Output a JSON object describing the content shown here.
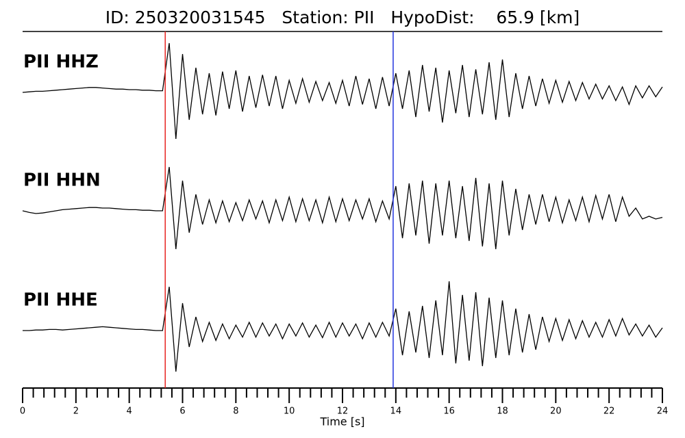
{
  "chart_data": {
    "type": "line",
    "title": "ID: 250320031545   Station: PII   HypoDist:    65.9 [km]",
    "xlabel": "Time [s]",
    "xlim": [
      0,
      24
    ],
    "xticks": [
      0,
      2,
      4,
      6,
      8,
      10,
      12,
      14,
      16,
      18,
      20,
      22,
      24
    ],
    "xminorticks": [
      0.4,
      0.8,
      1.2,
      1.6,
      2.4,
      2.8,
      3.2,
      3.6,
      4.4,
      4.8,
      5.2,
      5.6,
      6.4,
      6.8,
      7.2,
      7.6,
      8.4,
      8.8,
      9.2,
      9.6,
      10.4,
      10.8,
      11.2,
      11.6,
      12.4,
      12.8,
      13.2,
      13.6,
      14.4,
      14.8,
      15.2,
      15.6,
      16.4,
      16.8,
      17.2,
      17.6,
      18.4,
      18.8,
      19.2,
      19.6,
      20.4,
      20.8,
      21.2,
      21.6,
      22.4,
      22.8,
      23.2,
      23.6
    ],
    "ylim": [
      -1,
      1
    ],
    "label_color": "#4e9a06",
    "markers": [
      {
        "x": 5.35,
        "color": "#e8231f"
      },
      {
        "x": 13.9,
        "color": "#2233dd"
      }
    ],
    "x": [
      0,
      0.25,
      0.5,
      0.75,
      1,
      1.25,
      1.5,
      1.75,
      2,
      2.25,
      2.5,
      2.75,
      3,
      3.25,
      3.5,
      3.75,
      4,
      4.25,
      4.5,
      4.75,
      5,
      5.25,
      5.5,
      5.75,
      6,
      6.25,
      6.5,
      6.75,
      7,
      7.25,
      7.5,
      7.75,
      8,
      8.25,
      8.5,
      8.75,
      9,
      9.25,
      9.5,
      9.75,
      10,
      10.25,
      10.5,
      10.75,
      11,
      11.25,
      11.5,
      11.75,
      12,
      12.25,
      12.5,
      12.75,
      13,
      13.25,
      13.5,
      13.75,
      14,
      14.25,
      14.5,
      14.75,
      15,
      15.25,
      15.5,
      15.75,
      16,
      16.25,
      16.5,
      16.75,
      17,
      17.25,
      17.5,
      17.75,
      18,
      18.25,
      18.5,
      18.75,
      19,
      19.25,
      19.5,
      19.75,
      20,
      20.25,
      20.5,
      20.75,
      21,
      21.25,
      21.5,
      21.75,
      22,
      22.25,
      22.5,
      22.75,
      23,
      23.25,
      23.5,
      23.75,
      24
    ],
    "series": [
      {
        "name": "PII HHZ",
        "color": "#000000",
        "values": [
          0,
          0.01,
          0.02,
          0.02,
          0.03,
          0.04,
          0.05,
          0.06,
          0.07,
          0.08,
          0.09,
          0.09,
          0.08,
          0.07,
          0.06,
          0.06,
          0.05,
          0.05,
          0.04,
          0.04,
          0.03,
          0.03,
          0.9,
          -0.85,
          0.7,
          -0.5,
          0.45,
          -0.4,
          0.35,
          -0.42,
          0.38,
          -0.3,
          0.4,
          -0.35,
          0.3,
          -0.28,
          0.32,
          -0.25,
          0.3,
          -0.3,
          0.22,
          -0.2,
          0.25,
          -0.18,
          0.2,
          -0.15,
          0.18,
          -0.2,
          0.22,
          -0.25,
          0.3,
          -0.22,
          0.25,
          -0.3,
          0.28,
          -0.25,
          0.35,
          -0.3,
          0.4,
          -0.45,
          0.5,
          -0.35,
          0.45,
          -0.55,
          0.4,
          -0.38,
          0.5,
          -0.45,
          0.42,
          -0.4,
          0.55,
          -0.5,
          0.6,
          -0.45,
          0.35,
          -0.3,
          0.3,
          -0.25,
          0.25,
          -0.2,
          0.22,
          -0.18,
          0.2,
          -0.15,
          0.18,
          -0.12,
          0.15,
          -0.12,
          0.12,
          -0.15,
          0.1,
          -0.22,
          0.12,
          -0.1,
          0.12,
          -0.08,
          0.1
        ]
      },
      {
        "name": "PII HHN",
        "color": "#000000",
        "values": [
          0,
          -0.03,
          -0.05,
          -0.04,
          -0.02,
          0,
          0.02,
          0.03,
          0.04,
          0.05,
          0.06,
          0.06,
          0.05,
          0.05,
          0.04,
          0.03,
          0.02,
          0.02,
          0.01,
          0.01,
          0,
          0,
          0.8,
          -0.7,
          0.55,
          -0.4,
          0.3,
          -0.25,
          0.2,
          -0.22,
          0.18,
          -0.2,
          0.15,
          -0.18,
          0.2,
          -0.15,
          0.18,
          -0.22,
          0.2,
          -0.18,
          0.25,
          -0.2,
          0.22,
          -0.18,
          0.2,
          -0.22,
          0.25,
          -0.2,
          0.22,
          -0.18,
          0.2,
          -0.15,
          0.22,
          -0.2,
          0.18,
          -0.15,
          0.45,
          -0.5,
          0.5,
          -0.45,
          0.55,
          -0.6,
          0.5,
          -0.45,
          0.55,
          -0.5,
          0.45,
          -0.55,
          0.6,
          -0.65,
          0.5,
          -0.7,
          0.55,
          -0.45,
          0.4,
          -0.35,
          0.3,
          -0.25,
          0.3,
          -0.2,
          0.25,
          -0.22,
          0.2,
          -0.18,
          0.25,
          -0.2,
          0.28,
          -0.15,
          0.3,
          -0.2,
          0.25,
          -0.1,
          0.05,
          -0.15,
          -0.1,
          -0.15,
          -0.12
        ]
      },
      {
        "name": "PII HHE",
        "color": "#000000",
        "values": [
          0,
          0,
          0.01,
          0.01,
          0.02,
          0.02,
          0.01,
          0.02,
          0.03,
          0.04,
          0.05,
          0.06,
          0.07,
          0.06,
          0.05,
          0.04,
          0.03,
          0.02,
          0.02,
          0.01,
          0,
          0,
          0.8,
          -0.75,
          0.5,
          -0.3,
          0.25,
          -0.2,
          0.15,
          -0.18,
          0.12,
          -0.15,
          0.1,
          -0.12,
          0.15,
          -0.12,
          0.14,
          -0.1,
          0.12,
          -0.15,
          0.12,
          -0.1,
          0.14,
          -0.12,
          0.1,
          -0.13,
          0.15,
          -0.12,
          0.14,
          -0.1,
          0.12,
          -0.15,
          0.14,
          -0.12,
          0.15,
          -0.1,
          0.4,
          -0.45,
          0.35,
          -0.4,
          0.45,
          -0.5,
          0.55,
          -0.45,
          0.9,
          -0.6,
          0.65,
          -0.55,
          0.7,
          -0.65,
          0.6,
          -0.5,
          0.55,
          -0.45,
          0.4,
          -0.4,
          0.3,
          -0.35,
          0.25,
          -0.2,
          0.22,
          -0.18,
          0.2,
          -0.15,
          0.18,
          -0.12,
          0.15,
          -0.12,
          0.2,
          -0.1,
          0.22,
          -0.08,
          0.12,
          -0.1,
          0.1,
          -0.12,
          0.05
        ]
      }
    ]
  }
}
